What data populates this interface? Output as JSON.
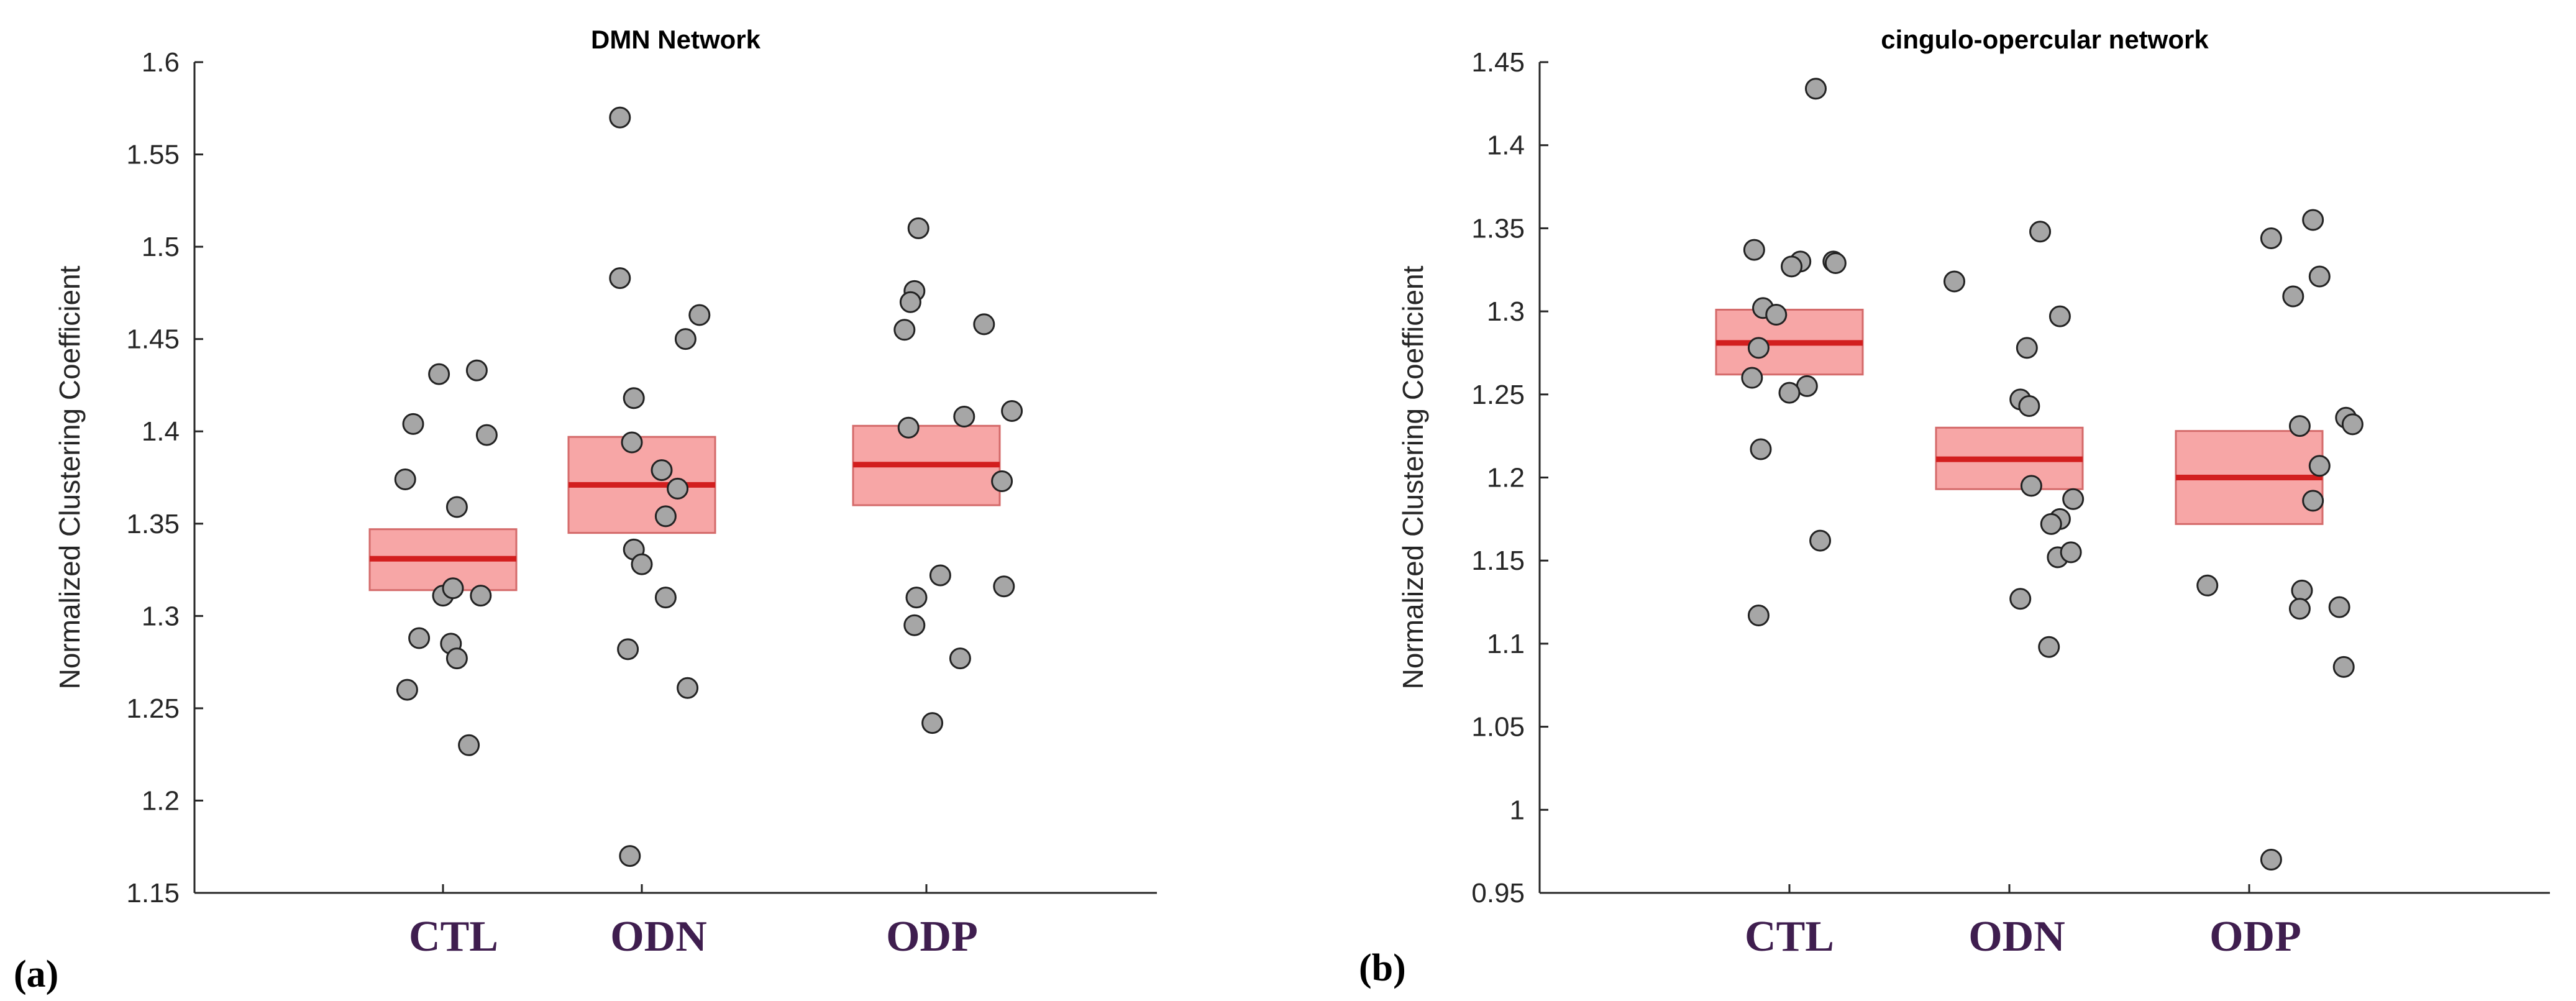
{
  "chart_data": [
    {
      "type": "scatter",
      "title": "DMN Network",
      "ylabel": "Normalized Clustering Coefficient",
      "xlabel": "",
      "panel_label": "(a)",
      "categories": [
        "CTL",
        "ODN",
        "ODP"
      ],
      "ylim": [
        1.15,
        1.6
      ],
      "yticks": [
        1.15,
        1.2,
        1.25,
        1.3,
        1.35,
        1.4,
        1.45,
        1.5,
        1.55,
        1.6
      ],
      "ytick_labels": [
        "1.15",
        "1.2",
        "1.25",
        "1.3",
        "1.35",
        "1.4",
        "1.45",
        "1.5",
        "1.55",
        "1.6"
      ],
      "groups": [
        {
          "name": "CTL",
          "mean": 1.331,
          "ci": [
            1.314,
            1.347
          ],
          "points": [
            {
              "j": -0.19,
              "y": 1.374
            },
            {
              "j": -0.15,
              "y": 1.404
            },
            {
              "j": -0.02,
              "y": 1.431
            },
            {
              "j": 0.17,
              "y": 1.433
            },
            {
              "j": 0.22,
              "y": 1.398
            },
            {
              "j": 0.07,
              "y": 1.359
            },
            {
              "j": 0.0,
              "y": 1.311
            },
            {
              "j": 0.05,
              "y": 1.315
            },
            {
              "j": 0.19,
              "y": 1.311
            },
            {
              "j": -0.12,
              "y": 1.288
            },
            {
              "j": 0.04,
              "y": 1.285
            },
            {
              "j": 0.07,
              "y": 1.277
            },
            {
              "j": -0.18,
              "y": 1.26
            },
            {
              "j": 0.13,
              "y": 1.23
            }
          ]
        },
        {
          "name": "ODN",
          "mean": 1.371,
          "ci": [
            1.345,
            1.397
          ],
          "points": [
            {
              "j": -0.11,
              "y": 1.57
            },
            {
              "j": -0.11,
              "y": 1.483
            },
            {
              "j": 0.29,
              "y": 1.463
            },
            {
              "j": 0.22,
              "y": 1.45
            },
            {
              "j": -0.04,
              "y": 1.418
            },
            {
              "j": -0.05,
              "y": 1.394
            },
            {
              "j": 0.1,
              "y": 1.379
            },
            {
              "j": 0.18,
              "y": 1.369
            },
            {
              "j": 0.12,
              "y": 1.354
            },
            {
              "j": -0.04,
              "y": 1.336
            },
            {
              "j": 0.0,
              "y": 1.328
            },
            {
              "j": 0.12,
              "y": 1.31
            },
            {
              "j": -0.07,
              "y": 1.282
            },
            {
              "j": 0.23,
              "y": 1.261
            },
            {
              "j": -0.06,
              "y": 1.17
            }
          ]
        },
        {
          "name": "ODP",
          "mean": 1.382,
          "ci": [
            1.36,
            1.403
          ],
          "points": [
            {
              "j": -0.04,
              "y": 1.51
            },
            {
              "j": -0.06,
              "y": 1.476
            },
            {
              "j": -0.08,
              "y": 1.47
            },
            {
              "j": 0.29,
              "y": 1.458
            },
            {
              "j": -0.11,
              "y": 1.455
            },
            {
              "j": -0.09,
              "y": 1.402
            },
            {
              "j": 0.19,
              "y": 1.408
            },
            {
              "j": 0.43,
              "y": 1.411
            },
            {
              "j": 0.38,
              "y": 1.373
            },
            {
              "j": 0.07,
              "y": 1.322
            },
            {
              "j": 0.39,
              "y": 1.316
            },
            {
              "j": -0.05,
              "y": 1.31
            },
            {
              "j": -0.06,
              "y": 1.295
            },
            {
              "j": 0.17,
              "y": 1.277
            },
            {
              "j": 0.03,
              "y": 1.242
            }
          ]
        }
      ]
    },
    {
      "type": "scatter",
      "title": "cingulo-opercular network",
      "ylabel": "Normalized Clustering Coefficient",
      "xlabel": "",
      "panel_label": "(b)",
      "categories": [
        "CTL",
        "ODN",
        "ODP"
      ],
      "ylim": [
        0.95,
        1.45
      ],
      "yticks": [
        0.95,
        1.0,
        1.05,
        1.1,
        1.15,
        1.2,
        1.25,
        1.3,
        1.35,
        1.4,
        1.45
      ],
      "ytick_labels": [
        "0.95",
        "1",
        "1.05",
        "1.1",
        "1.15",
        "1.2",
        "1.25",
        "1.3",
        "1.35",
        "1.4",
        "1.45"
      ],
      "groups": [
        {
          "name": "CTL",
          "mean": 1.281,
          "ci": [
            1.262,
            1.301
          ],
          "points": [
            {
              "j": 0.12,
              "y": 1.434
            },
            {
              "j": -0.16,
              "y": 1.337
            },
            {
              "j": 0.05,
              "y": 1.33
            },
            {
              "j": 0.01,
              "y": 1.327
            },
            {
              "j": 0.2,
              "y": 1.33
            },
            {
              "j": 0.21,
              "y": 1.329
            },
            {
              "j": -0.12,
              "y": 1.302
            },
            {
              "j": -0.06,
              "y": 1.298
            },
            {
              "j": -0.14,
              "y": 1.278
            },
            {
              "j": -0.17,
              "y": 1.26
            },
            {
              "j": 0.08,
              "y": 1.255
            },
            {
              "j": 0.0,
              "y": 1.251
            },
            {
              "j": -0.13,
              "y": 1.217
            },
            {
              "j": 0.14,
              "y": 1.162
            },
            {
              "j": -0.14,
              "y": 1.117
            }
          ]
        },
        {
          "name": "ODN",
          "mean": 1.211,
          "ci": [
            1.193,
            1.23
          ],
          "points": [
            {
              "j": -0.25,
              "y": 1.318
            },
            {
              "j": 0.14,
              "y": 1.348
            },
            {
              "j": 0.23,
              "y": 1.297
            },
            {
              "j": 0.08,
              "y": 1.278
            },
            {
              "j": 0.05,
              "y": 1.247
            },
            {
              "j": 0.09,
              "y": 1.243
            },
            {
              "j": 0.1,
              "y": 1.195
            },
            {
              "j": 0.29,
              "y": 1.187
            },
            {
              "j": 0.23,
              "y": 1.175
            },
            {
              "j": 0.19,
              "y": 1.172
            },
            {
              "j": 0.22,
              "y": 1.152
            },
            {
              "j": 0.28,
              "y": 1.155
            },
            {
              "j": 0.05,
              "y": 1.127
            },
            {
              "j": 0.18,
              "y": 1.098
            }
          ]
        },
        {
          "name": "ODP",
          "mean": 1.2,
          "ci": [
            1.172,
            1.228
          ],
          "points": [
            {
              "j": 0.1,
              "y": 1.344
            },
            {
              "j": 0.29,
              "y": 1.355
            },
            {
              "j": 0.32,
              "y": 1.321
            },
            {
              "j": 0.2,
              "y": 1.309
            },
            {
              "j": 0.44,
              "y": 1.236
            },
            {
              "j": 0.47,
              "y": 1.232
            },
            {
              "j": 0.23,
              "y": 1.231
            },
            {
              "j": 0.32,
              "y": 1.207
            },
            {
              "j": 0.29,
              "y": 1.186
            },
            {
              "j": -0.19,
              "y": 1.135
            },
            {
              "j": 0.24,
              "y": 1.132
            },
            {
              "j": 0.41,
              "y": 1.122
            },
            {
              "j": 0.23,
              "y": 1.121
            },
            {
              "j": 0.43,
              "y": 1.086
            },
            {
              "j": 0.1,
              "y": 0.97
            }
          ]
        }
      ]
    }
  ]
}
